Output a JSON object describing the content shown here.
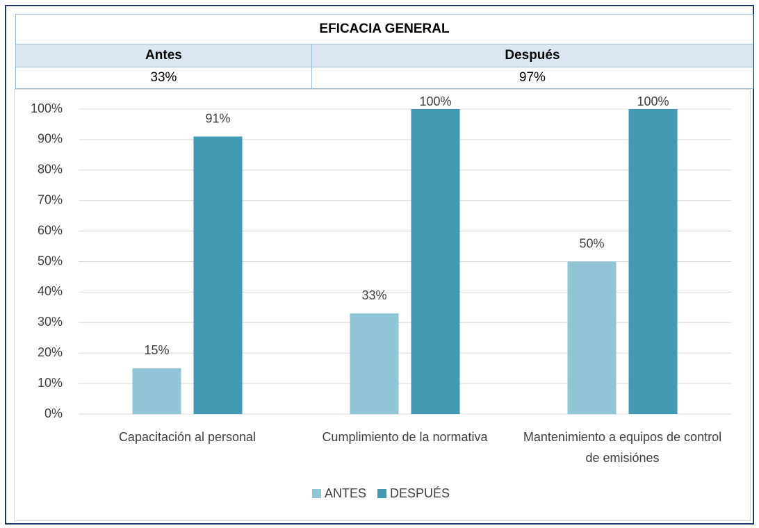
{
  "table": {
    "title": "EFICACIA GENERAL",
    "headers": [
      "Antes",
      "Después"
    ],
    "rows": [
      [
        "33%",
        "97%"
      ]
    ]
  },
  "chart_data": {
    "type": "bar",
    "categories": [
      "Capacitación al personal",
      "Cumplimiento de la normativa",
      "Mantenimiento a equipos de control de emisiónes"
    ],
    "series": [
      {
        "name": "ANTES",
        "color": "#92c5d6",
        "values": [
          15,
          33,
          50
        ],
        "value_labels": [
          "15%",
          "33%",
          "50%"
        ]
      },
      {
        "name": "DESPUÉS",
        "color": "#4299b2",
        "values": [
          91,
          100,
          100
        ],
        "value_labels": [
          "91%",
          "100%",
          "100%"
        ]
      }
    ],
    "ylim": [
      0,
      100
    ],
    "yticks": [
      {
        "value": 0,
        "label": "0%"
      },
      {
        "value": 10,
        "label": "10%"
      },
      {
        "value": 20,
        "label": "20%"
      },
      {
        "value": 30,
        "label": "30%"
      },
      {
        "value": 40,
        "label": "40%"
      },
      {
        "value": 50,
        "label": "50%"
      },
      {
        "value": 60,
        "label": "60%"
      },
      {
        "value": 70,
        "label": "70%"
      },
      {
        "value": 80,
        "label": "80%"
      },
      {
        "value": 90,
        "label": "90%"
      },
      {
        "value": 100,
        "label": "100%"
      }
    ],
    "grid": true,
    "legend": "bottom"
  }
}
